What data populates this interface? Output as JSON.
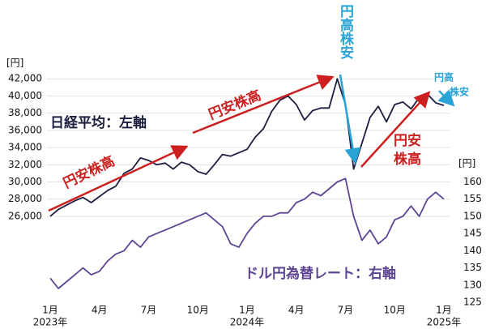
{
  "chart_data": {
    "type": "line",
    "y_unit": "[円]",
    "y2_unit": "[円]",
    "x": [
      0,
      0.5,
      1,
      1.5,
      2,
      2.5,
      3,
      3.5,
      4,
      4.5,
      5,
      5.5,
      6,
      6.5,
      7,
      7.5,
      8,
      8.5,
      9,
      9.5,
      10,
      10.5,
      11,
      11.5,
      12,
      12.5,
      13,
      13.5,
      14,
      14.5,
      15,
      15.5,
      16,
      16.5,
      17,
      17.5,
      18,
      18.5,
      19,
      19.5,
      20,
      20.5,
      21,
      21.5,
      22,
      22.5,
      23,
      23.5,
      24
    ],
    "xlim": [
      0,
      24
    ],
    "xticks": [
      {
        "value": 0,
        "label": "1月"
      },
      {
        "value": 3,
        "label": "4月"
      },
      {
        "value": 6,
        "label": "7月"
      },
      {
        "value": 9,
        "label": "10月"
      },
      {
        "value": 12,
        "label": "1月"
      },
      {
        "value": 15,
        "label": "4月"
      },
      {
        "value": 18,
        "label": "7月"
      },
      {
        "value": 21,
        "label": "10月"
      },
      {
        "value": 24,
        "label": "1月"
      }
    ],
    "x_year_labels": [
      {
        "value": 0,
        "label": "2023年"
      },
      {
        "value": 12,
        "label": "2024年"
      },
      {
        "value": 24,
        "label": "2025年"
      }
    ],
    "ylim": [
      16000,
      44000
    ],
    "yticks": [
      {
        "value": 26000,
        "label": "26,000"
      },
      {
        "value": 28000,
        "label": "28,000"
      },
      {
        "value": 30000,
        "label": "30,000"
      },
      {
        "value": 32000,
        "label": "32,000"
      },
      {
        "value": 34000,
        "label": "34,000"
      },
      {
        "value": 36000,
        "label": "36,000"
      },
      {
        "value": 38000,
        "label": "38,000"
      },
      {
        "value": 40000,
        "label": "40,000"
      },
      {
        "value": 42000,
        "label": "42,000"
      }
    ],
    "y2lim": [
      125,
      195
    ],
    "y2ticks": [
      125,
      130,
      135,
      140,
      145,
      150,
      155,
      160
    ],
    "grid": true,
    "series": [
      {
        "name": "日経平均：左軸",
        "color": "#1c1f3f",
        "values": [
          26000,
          26800,
          27300,
          27800,
          28200,
          27600,
          28300,
          29000,
          29500,
          31000,
          31500,
          32800,
          32500,
          32000,
          32200,
          31500,
          32300,
          32000,
          31200,
          30900,
          32000,
          33200,
          33000,
          33400,
          33800,
          35200,
          36200,
          38200,
          39500,
          40000,
          39000,
          37200,
          38300,
          38600,
          38600,
          42000,
          39000,
          31500,
          34500,
          37500,
          38800,
          37000,
          39000,
          39300,
          38500,
          39800,
          40200,
          39200,
          38900
        ]
      },
      {
        "name": "ドル円為替レート：右軸",
        "color": "#5e4594",
        "axis": "y2",
        "values": [
          132,
          129,
          131,
          133,
          135,
          133,
          134,
          137,
          139,
          140,
          143,
          141,
          144,
          145,
          146,
          147,
          148,
          149,
          150,
          151,
          149,
          147,
          142,
          141,
          145,
          148,
          150,
          150,
          151,
          151,
          154,
          155,
          157,
          156,
          158,
          160,
          161,
          150,
          143,
          146,
          142,
          144,
          149,
          150,
          153,
          150,
          155,
          157,
          155
        ]
      }
    ],
    "annotations": [
      "円安株高",
      "円安株高",
      "円高株安",
      "円安",
      "株高",
      "円高",
      "株安"
    ]
  }
}
